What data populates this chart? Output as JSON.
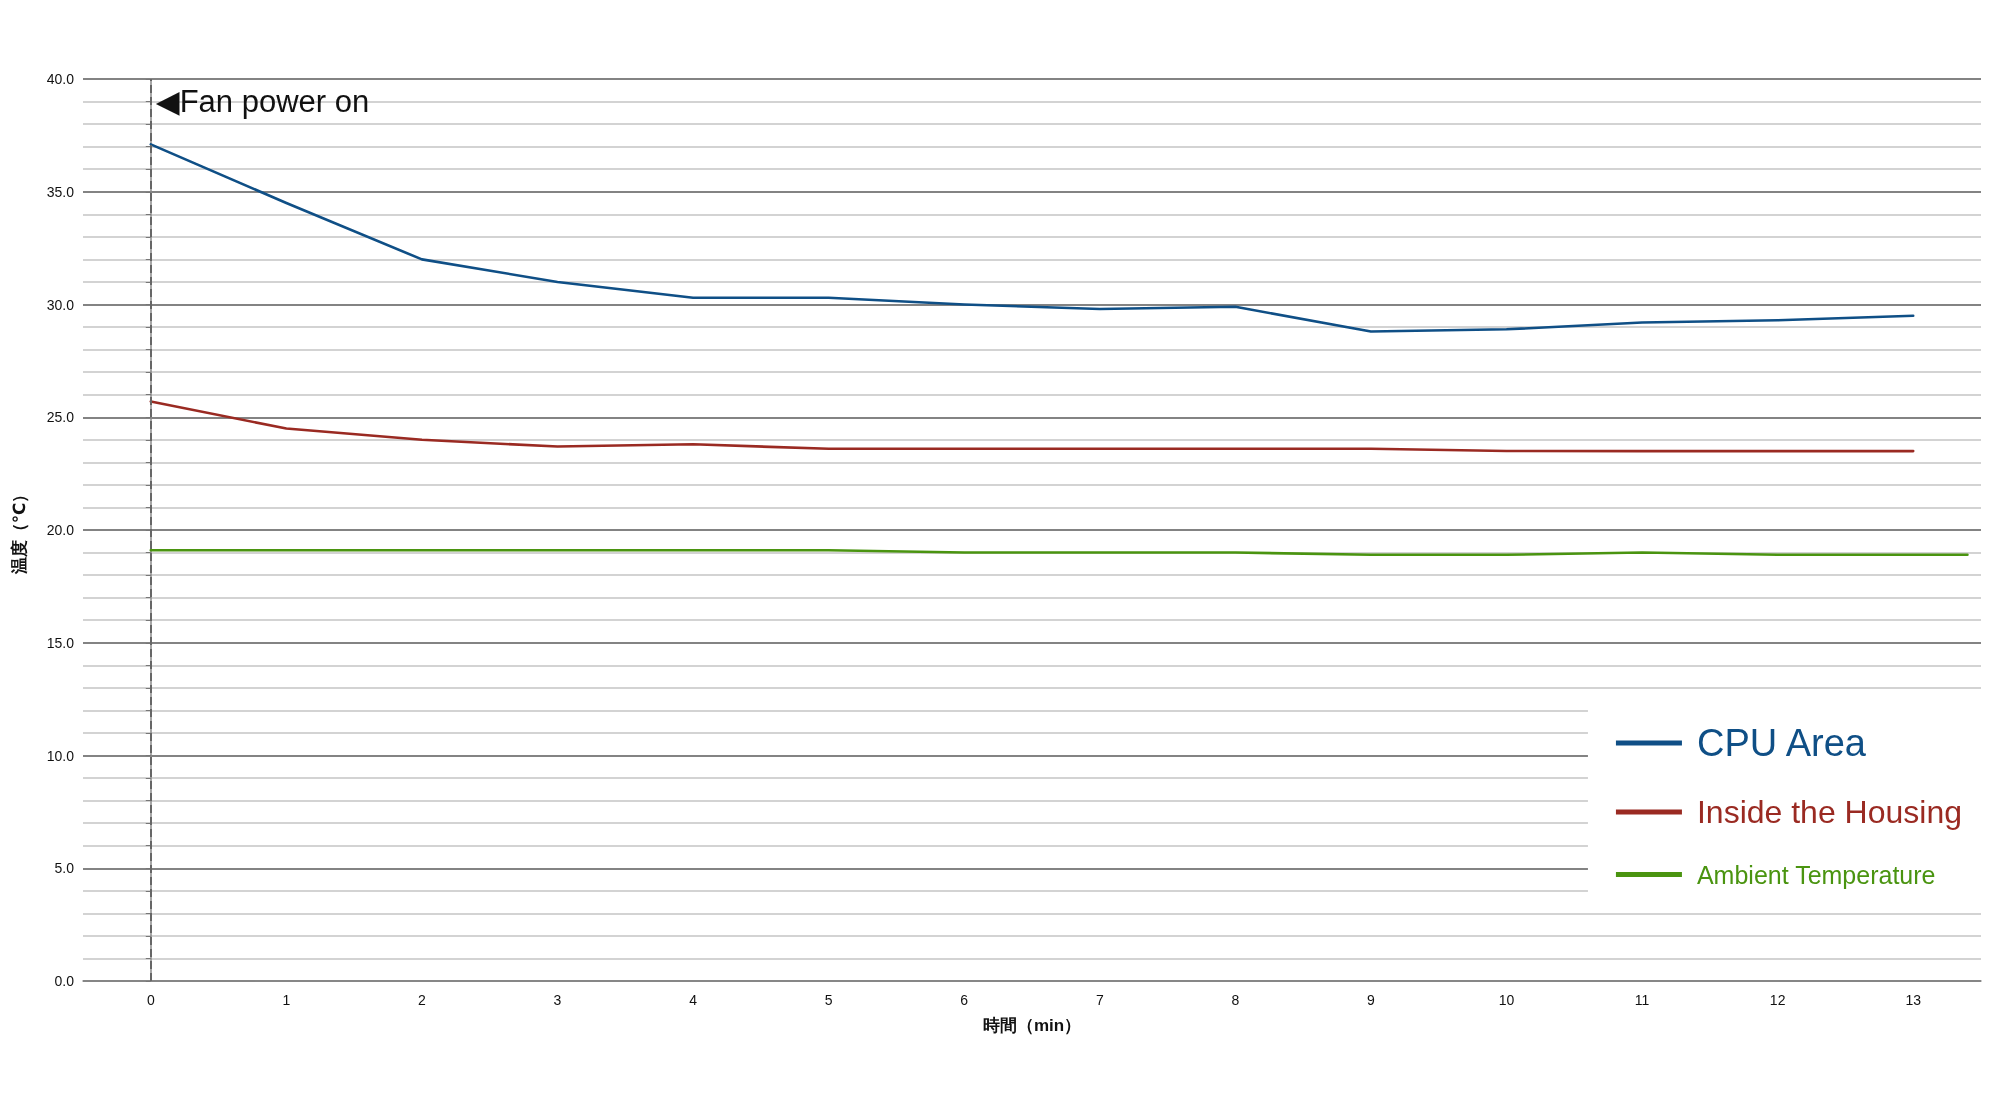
{
  "chart_data": {
    "type": "line",
    "xlabel": "時間（min）",
    "ylabel": "温度（℃）",
    "x": [
      0,
      1,
      2,
      3,
      4,
      5,
      6,
      7,
      8,
      9,
      10,
      11,
      12,
      13
    ],
    "xlim": [
      -0.5,
      13.5
    ],
    "xticks": [
      0,
      1,
      2,
      3,
      4,
      5,
      6,
      7,
      8,
      9,
      10,
      11,
      12,
      13
    ],
    "ylim": [
      0,
      40
    ],
    "yticks": [
      {
        "value": 0,
        "label": "0.0"
      },
      {
        "value": 1,
        "label": null
      },
      {
        "value": 2,
        "label": null
      },
      {
        "value": 3,
        "label": null
      },
      {
        "value": 4,
        "label": null
      },
      {
        "value": 5,
        "label": "5.0"
      },
      {
        "value": 6,
        "label": null
      },
      {
        "value": 7,
        "label": null
      },
      {
        "value": 8,
        "label": null
      },
      {
        "value": 9,
        "label": null
      },
      {
        "value": 10,
        "label": "10.0"
      },
      {
        "value": 11,
        "label": null
      },
      {
        "value": 12,
        "label": null
      },
      {
        "value": 13,
        "label": null
      },
      {
        "value": 14,
        "label": null
      },
      {
        "value": 15,
        "label": "15.0"
      },
      {
        "value": 16,
        "label": null
      },
      {
        "value": 17,
        "label": null
      },
      {
        "value": 18,
        "label": null
      },
      {
        "value": 19,
        "label": null
      },
      {
        "value": 20,
        "label": "20.0"
      },
      {
        "value": 21,
        "label": null
      },
      {
        "value": 22,
        "label": null
      },
      {
        "value": 23,
        "label": null
      },
      {
        "value": 24,
        "label": null
      },
      {
        "value": 25,
        "label": "25.0"
      },
      {
        "value": 26,
        "label": null
      },
      {
        "value": 27,
        "label": null
      },
      {
        "value": 28,
        "label": null
      },
      {
        "value": 29,
        "label": null
      },
      {
        "value": 30,
        "label": "30.0"
      },
      {
        "value": 31,
        "label": null
      },
      {
        "value": 32,
        "label": null
      },
      {
        "value": 33,
        "label": null
      },
      {
        "value": 34,
        "label": null
      },
      {
        "value": 35,
        "label": "35.0"
      },
      {
        "value": 36,
        "label": null
      },
      {
        "value": 37,
        "label": null
      },
      {
        "value": 38,
        "label": null
      },
      {
        "value": 39,
        "label": null
      },
      {
        "value": 40,
        "label": "40.0"
      }
    ],
    "series": [
      {
        "name": "CPU Area",
        "color": "#0f4f86",
        "values": [
          37.1,
          34.5,
          32.0,
          31.0,
          30.3,
          30.3,
          30.0,
          29.8,
          29.9,
          28.8,
          28.9,
          29.2,
          29.3,
          29.5
        ]
      },
      {
        "name": "Inside the Housing",
        "color": "#9a2a22",
        "values": [
          25.7,
          24.5,
          24.0,
          23.7,
          23.8,
          23.6,
          23.6,
          23.6,
          23.6,
          23.6,
          23.5,
          23.5,
          23.5,
          23.5
        ]
      },
      {
        "name": "Ambient Temperature",
        "color": "#4a9410",
        "x": [
          0,
          1,
          2,
          3,
          4,
          5,
          6,
          7,
          8,
          9,
          10,
          11,
          12,
          13,
          13.4
        ],
        "values": [
          19.1,
          19.1,
          19.1,
          19.1,
          19.1,
          19.1,
          19.0,
          19.0,
          19.0,
          18.9,
          18.9,
          19.0,
          18.9,
          18.9,
          18.9
        ]
      }
    ],
    "ref_lines": [
      {
        "axis": "x",
        "value": 0,
        "label": "◀Fan power on",
        "color": "#666666",
        "line_style": "dashed"
      }
    ],
    "grid": "y",
    "legend": "bottom right"
  }
}
